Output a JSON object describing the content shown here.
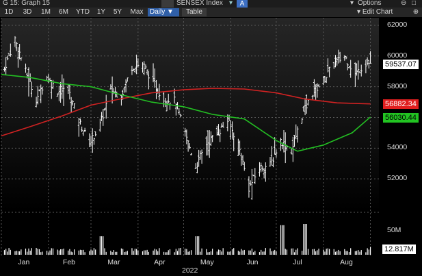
{
  "window": {
    "title": "G 15: Graph 15",
    "security": "SENSEX Index",
    "options_label": "Options",
    "edit_chart_label": "Edit Chart",
    "a_badge": "A"
  },
  "toolbar": {
    "ranges": [
      "1D",
      "3D",
      "1M",
      "6M",
      "YTD",
      "1Y",
      "5Y",
      "Max"
    ],
    "frequency": "Daily",
    "table_label": "Table"
  },
  "labels": {
    "last_price": "59537.07",
    "ma_red": "56882.34",
    "ma_green": "56030.44",
    "volume_max": "50M",
    "volume_last": "12.817M"
  },
  "colors": {
    "ma_red": "#d02222",
    "ma_green": "#23c023",
    "price": "#ffffff",
    "volume": "#ffffff",
    "label_price": "#ffffff",
    "label_red": "#e11f1f",
    "label_green": "#22c422"
  },
  "chart_data": {
    "type": "line",
    "title": "SENSEX Index",
    "frequency": "Daily",
    "x_labels": [
      "Jan",
      "Feb",
      "Mar",
      "Apr",
      "May",
      "Jun",
      "Jul",
      "Aug"
    ],
    "x_year": "2022",
    "ylim": [
      50000,
      62400
    ],
    "y_ticks": [
      52000,
      54000,
      56000,
      58000,
      60000,
      62000
    ],
    "series": [
      {
        "type": "ohlc-bars",
        "name": "SENSEX Index",
        "weekly_closes": [
          [
            "2022-01-03",
            59200
          ],
          [
            "2022-01-10",
            61100
          ],
          [
            "2022-01-17",
            59000
          ],
          [
            "2022-01-24",
            57200
          ],
          [
            "2022-01-31",
            58600
          ],
          [
            "2022-02-07",
            57700
          ],
          [
            "2022-02-14",
            57800
          ],
          [
            "2022-02-21",
            55800
          ],
          [
            "2022-02-28",
            54300
          ],
          [
            "2022-03-07",
            55500
          ],
          [
            "2022-03-14",
            57800
          ],
          [
            "2022-03-21",
            57400
          ],
          [
            "2022-03-28",
            59300
          ],
          [
            "2022-04-04",
            59500
          ],
          [
            "2022-04-11",
            58300
          ],
          [
            "2022-04-18",
            57200
          ],
          [
            "2022-04-25",
            57100
          ],
          [
            "2022-05-02",
            55000
          ],
          [
            "2022-05-09",
            52800
          ],
          [
            "2022-05-16",
            54300
          ],
          [
            "2022-05-23",
            54900
          ],
          [
            "2022-05-30",
            55800
          ],
          [
            "2022-06-06",
            54300
          ],
          [
            "2022-06-13",
            51400
          ],
          [
            "2022-06-20",
            52700
          ],
          [
            "2022-06-27",
            52900
          ],
          [
            "2022-07-04",
            54500
          ],
          [
            "2022-07-11",
            53800
          ],
          [
            "2022-07-18",
            56100
          ],
          [
            "2022-07-25",
            57600
          ],
          [
            "2022-08-01",
            58400
          ],
          [
            "2022-08-08",
            59500
          ],
          [
            "2022-08-15",
            60000
          ],
          [
            "2022-08-22",
            58800
          ],
          [
            "2022-08-29",
            59537
          ]
        ]
      },
      {
        "name": "",
        "color": "#d02222",
        "points": [
          [
            "2022-01-01",
            54800
          ],
          [
            "2022-01-20",
            55400
          ],
          [
            "2022-02-10",
            56100
          ],
          [
            "2022-03-01",
            56800
          ],
          [
            "2022-03-20",
            57200
          ],
          [
            "2022-04-10",
            57600
          ],
          [
            "2022-05-01",
            57800
          ],
          [
            "2022-05-20",
            57900
          ],
          [
            "2022-06-10",
            57850
          ],
          [
            "2022-07-01",
            57600
          ],
          [
            "2022-07-20",
            57200
          ],
          [
            "2022-08-10",
            56950
          ],
          [
            "2022-09-01",
            56882
          ]
        ]
      },
      {
        "name": "",
        "color": "#23c023",
        "points": [
          [
            "2022-01-01",
            58800
          ],
          [
            "2022-01-20",
            58600
          ],
          [
            "2022-02-10",
            58200
          ],
          [
            "2022-03-01",
            58000
          ],
          [
            "2022-03-20",
            57500
          ],
          [
            "2022-04-10",
            57000
          ],
          [
            "2022-05-01",
            56700
          ],
          [
            "2022-05-20",
            56200
          ],
          [
            "2022-06-10",
            55900
          ],
          [
            "2022-07-01",
            54500
          ],
          [
            "2022-07-15",
            53800
          ],
          [
            "2022-08-01",
            54200
          ],
          [
            "2022-08-20",
            55000
          ],
          [
            "2022-09-01",
            56030
          ]
        ]
      }
    ],
    "volume": {
      "ylim": [
        0,
        60000000
      ],
      "y_ticks": [
        50000000
      ],
      "spikes": [
        [
          "2022-03-08",
          30000000
        ],
        [
          "2022-05-10",
          30000000
        ],
        [
          "2022-07-05",
          48000000
        ],
        [
          "2022-07-20",
          50000000
        ]
      ],
      "typical": 8000000,
      "last": 12817000
    },
    "grid": true
  }
}
